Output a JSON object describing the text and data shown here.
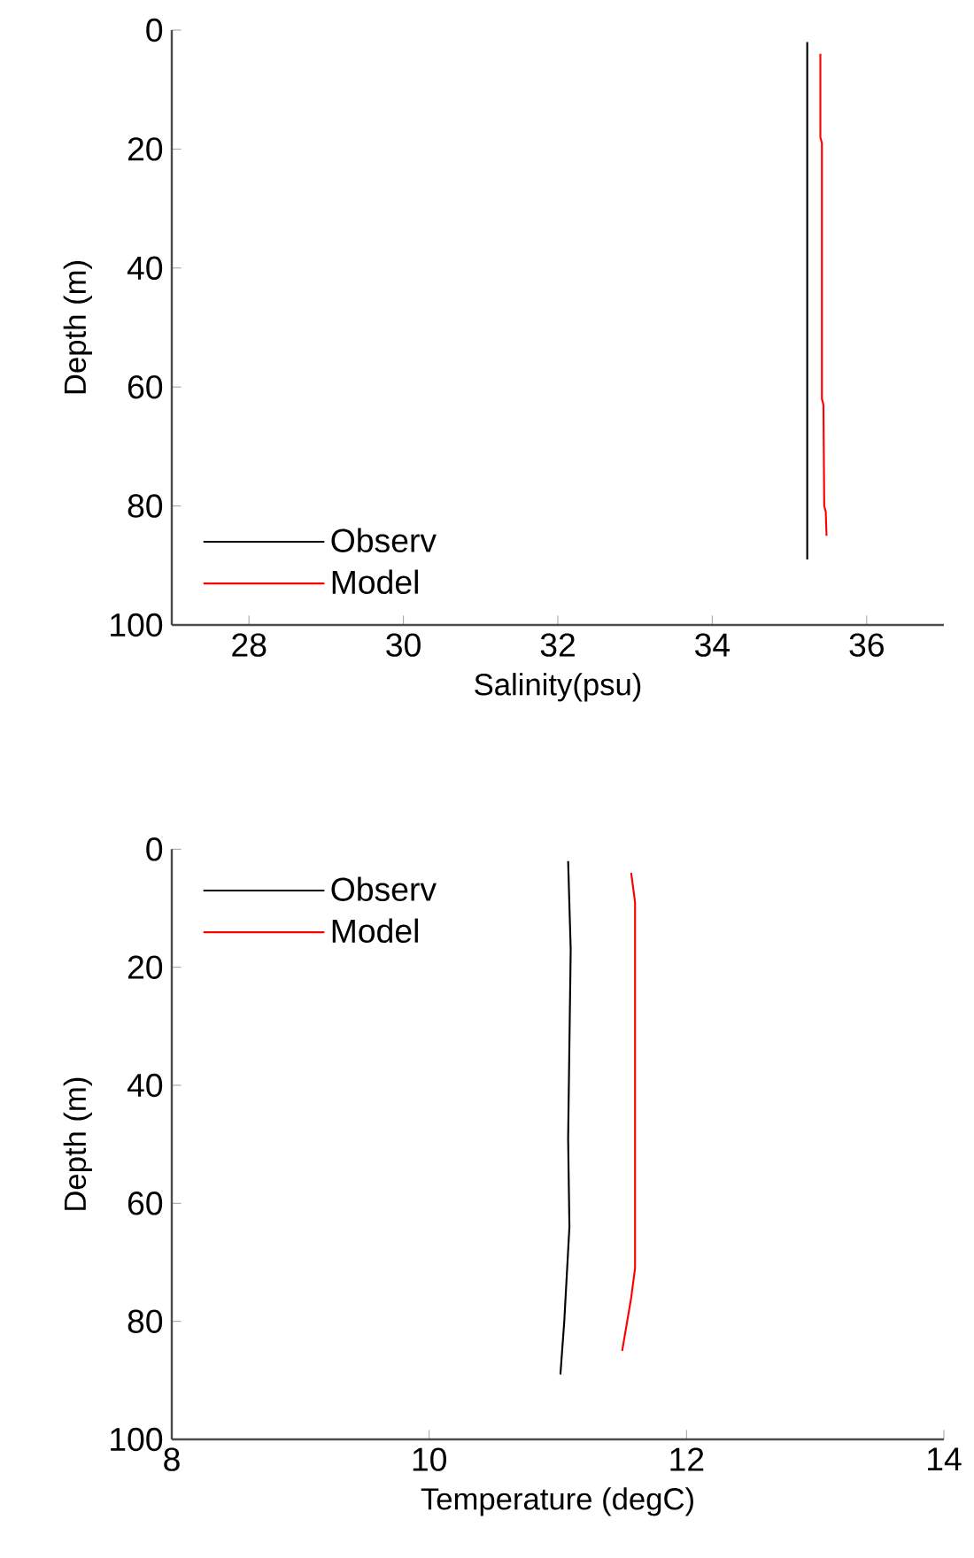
{
  "chart_data": [
    {
      "type": "line",
      "xlabel": "Salinity(psu)",
      "ylabel": "Depth (m)",
      "xlim": [
        27,
        37
      ],
      "xticks": [
        28,
        30,
        32,
        34,
        36
      ],
      "ylim": [
        100,
        0
      ],
      "yticks": [
        0,
        20,
        40,
        60,
        80,
        100
      ],
      "legend": "bottom left",
      "grid": false,
      "series": [
        {
          "name": "Observ",
          "color": "#000000",
          "x": [
            35.23,
            35.23
          ],
          "values": [
            2,
            89
          ]
        },
        {
          "name": "Model",
          "color": "#ff0000",
          "x": [
            35.4,
            35.4,
            35.42,
            35.42,
            35.44,
            35.45,
            35.47,
            35.48
          ],
          "values": [
            4,
            18,
            19,
            62,
            63,
            80,
            81,
            85
          ]
        }
      ]
    },
    {
      "type": "line",
      "xlabel": "Temperature (degC)",
      "ylabel": "Depth (m)",
      "xlim": [
        8,
        14
      ],
      "xticks": [
        8,
        10,
        12,
        14
      ],
      "ylim": [
        100,
        0
      ],
      "yticks": [
        0,
        20,
        40,
        60,
        80,
        100
      ],
      "legend": "top left",
      "grid": false,
      "series": [
        {
          "name": "Observ",
          "color": "#000000",
          "x": [
            11.08,
            11.1,
            11.08,
            11.09,
            11.05,
            11.02
          ],
          "values": [
            2,
            17,
            49,
            64,
            80,
            89
          ]
        },
        {
          "name": "Model",
          "color": "#ff0000",
          "x": [
            11.57,
            11.6,
            11.6,
            11.57,
            11.5
          ],
          "values": [
            4,
            9,
            71,
            76,
            85
          ]
        }
      ]
    }
  ]
}
